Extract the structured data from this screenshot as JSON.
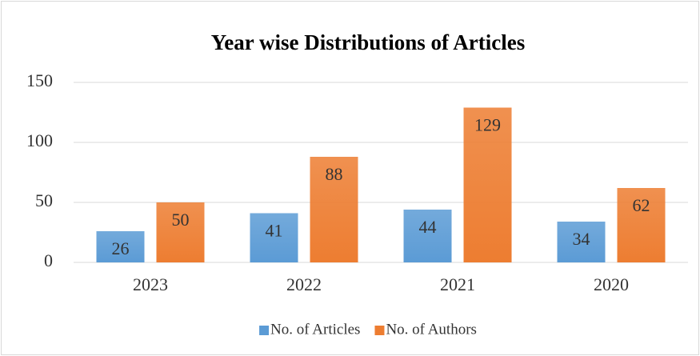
{
  "chart_data": {
    "type": "bar",
    "title": "Year wise Distributions of Articles",
    "categories": [
      "2023",
      "2022",
      "2021",
      "2020"
    ],
    "series": [
      {
        "name": "No. of Articles",
        "color": "#5b9bd5",
        "values": [
          26,
          41,
          44,
          34
        ]
      },
      {
        "name": "No. of Authors",
        "color": "#ed7d31",
        "values": [
          50,
          88,
          129,
          62
        ]
      }
    ],
    "ylim": [
      0,
      150
    ],
    "yticks": [
      0,
      50,
      100,
      150
    ],
    "grid": true,
    "legend": "bottom",
    "data_labels": true
  }
}
